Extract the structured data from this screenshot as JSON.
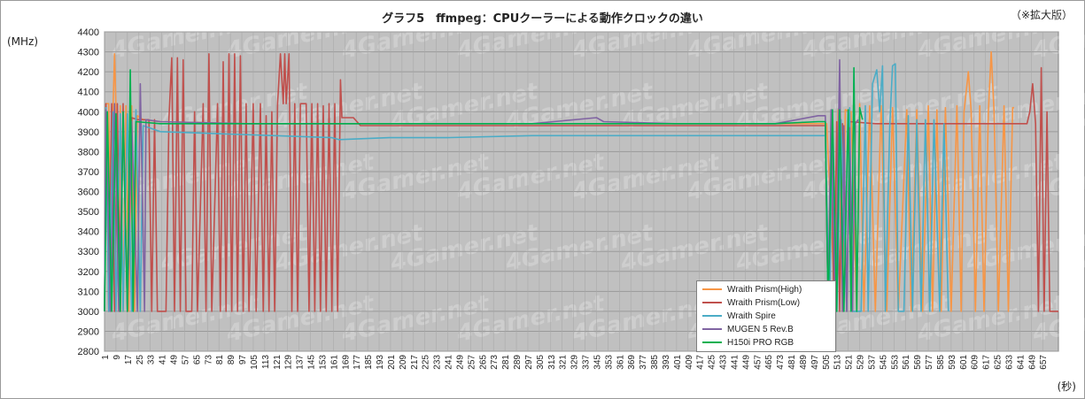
{
  "header": {
    "title": "グラフ5　ffmpeg：CPUクーラーによる動作クロックの違い",
    "note": "（※拡大版）"
  },
  "watermark_text": "4Gamer.net",
  "chart_data": {
    "type": "line",
    "title": "グラフ5　ffmpeg：CPUクーラーによる動作クロックの違い",
    "ylabel": "(MHz)",
    "xlabel": "(秒)",
    "ylim": [
      2800,
      4400
    ],
    "yticks": [
      2800,
      2900,
      3000,
      3100,
      3200,
      3300,
      3400,
      3500,
      3600,
      3700,
      3800,
      3900,
      4000,
      4100,
      4200,
      4300,
      4400
    ],
    "xlim": [
      1,
      668
    ],
    "xticks": [
      1,
      9,
      17,
      25,
      33,
      41,
      49,
      57,
      65,
      73,
      81,
      89,
      97,
      105,
      113,
      121,
      129,
      137,
      145,
      153,
      161,
      169,
      177,
      185,
      193,
      201,
      209,
      217,
      225,
      233,
      241,
      249,
      257,
      265,
      273,
      281,
      289,
      297,
      305,
      313,
      321,
      329,
      337,
      345,
      353,
      361,
      369,
      377,
      385,
      393,
      401,
      409,
      417,
      425,
      433,
      441,
      449,
      457,
      465,
      473,
      481,
      489,
      497,
      505,
      513,
      521,
      529,
      537,
      545,
      553,
      561,
      569,
      577,
      585,
      593,
      601,
      609,
      617,
      625,
      633,
      641,
      649,
      657
    ],
    "grid": true,
    "legend_position": "lower-right",
    "plot_background": "#c0c0c0",
    "series": [
      {
        "name": "Wraith Prism(High)",
        "color": "#f79646",
        "points": [
          [
            1,
            3000
          ],
          [
            2,
            4040
          ],
          [
            4,
            4040
          ],
          [
            6,
            3000
          ],
          [
            7,
            4030
          ],
          [
            8,
            4290
          ],
          [
            9,
            4030
          ],
          [
            11,
            3000
          ],
          [
            12,
            4030
          ],
          [
            14,
            3000
          ],
          [
            16,
            4030
          ],
          [
            18,
            3000
          ],
          [
            20,
            4030
          ],
          [
            22,
            3000
          ],
          [
            24,
            3980
          ],
          [
            28,
            3960
          ],
          [
            40,
            3950
          ],
          [
            100,
            3940
          ],
          [
            160,
            3940
          ],
          [
            506,
            3940
          ],
          [
            512,
            3000
          ],
          [
            514,
            4010
          ],
          [
            517,
            3000
          ],
          [
            519,
            4010
          ],
          [
            523,
            4000
          ],
          [
            527,
            3000
          ],
          [
            529,
            4040
          ],
          [
            532,
            3000
          ],
          [
            536,
            4030
          ],
          [
            540,
            3000
          ],
          [
            544,
            4030
          ],
          [
            548,
            3000
          ],
          [
            552,
            4020
          ],
          [
            556,
            3000
          ],
          [
            562,
            4010
          ],
          [
            565,
            3000
          ],
          [
            569,
            4010
          ],
          [
            573,
            3000
          ],
          [
            577,
            4030
          ],
          [
            580,
            3000
          ],
          [
            583,
            4010
          ],
          [
            586,
            3000
          ],
          [
            589,
            4020
          ],
          [
            593,
            3000
          ],
          [
            597,
            4030
          ],
          [
            600,
            3000
          ],
          [
            602,
            4000
          ],
          [
            605,
            4200
          ],
          [
            607,
            4000
          ],
          [
            610,
            3000
          ],
          [
            613,
            4030
          ],
          [
            616,
            3000
          ],
          [
            619,
            4000
          ],
          [
            621,
            4300
          ],
          [
            623,
            4000
          ],
          [
            626,
            3000
          ],
          [
            630,
            4030
          ],
          [
            633,
            3000
          ],
          [
            636,
            4020
          ],
          [
            637,
            4020
          ]
        ]
      },
      {
        "name": "Wraith Prism(Low)",
        "color": "#c0504d",
        "points": [
          [
            1,
            3000
          ],
          [
            2,
            4040
          ],
          [
            4,
            3000
          ],
          [
            6,
            4040
          ],
          [
            8,
            3000
          ],
          [
            10,
            4040
          ],
          [
            12,
            3000
          ],
          [
            14,
            4040
          ],
          [
            17,
            3000
          ],
          [
            20,
            3970
          ],
          [
            24,
            3960
          ],
          [
            32,
            3960
          ],
          [
            34,
            3000
          ],
          [
            36,
            3960
          ],
          [
            38,
            3000
          ],
          [
            44,
            3000
          ],
          [
            46,
            3960
          ],
          [
            48,
            4270
          ],
          [
            50,
            3000
          ],
          [
            52,
            4270
          ],
          [
            54,
            3000
          ],
          [
            56,
            4260
          ],
          [
            58,
            3000
          ],
          [
            62,
            3000
          ],
          [
            64,
            4000
          ],
          [
            66,
            3000
          ],
          [
            70,
            4040
          ],
          [
            72,
            3000
          ],
          [
            74,
            4290
          ],
          [
            76,
            3000
          ],
          [
            80,
            4040
          ],
          [
            82,
            3000
          ],
          [
            84,
            4250
          ],
          [
            86,
            3000
          ],
          [
            88,
            4290
          ],
          [
            90,
            3000
          ],
          [
            92,
            4290
          ],
          [
            94,
            3000
          ],
          [
            96,
            4280
          ],
          [
            98,
            3000
          ],
          [
            100,
            4040
          ],
          [
            102,
            3000
          ],
          [
            105,
            4040
          ],
          [
            107,
            3000
          ],
          [
            110,
            4040
          ],
          [
            112,
            3000
          ],
          [
            114,
            3980
          ],
          [
            116,
            3000
          ],
          [
            118,
            4000
          ],
          [
            120,
            3000
          ],
          [
            122,
            4040
          ],
          [
            124,
            4290
          ],
          [
            126,
            4040
          ],
          [
            127,
            4290
          ],
          [
            128,
            4040
          ],
          [
            130,
            4290
          ],
          [
            132,
            3000
          ],
          [
            134,
            4040
          ],
          [
            136,
            3000
          ],
          [
            138,
            4040
          ],
          [
            142,
            4040
          ],
          [
            144,
            3000
          ],
          [
            146,
            4040
          ],
          [
            148,
            3000
          ],
          [
            150,
            4040
          ],
          [
            152,
            3000
          ],
          [
            154,
            4030
          ],
          [
            156,
            3000
          ],
          [
            158,
            4040
          ],
          [
            160,
            3000
          ],
          [
            162,
            4040
          ],
          [
            164,
            3000
          ],
          [
            166,
            4160
          ],
          [
            167,
            3970
          ],
          [
            175,
            3970
          ],
          [
            180,
            3930
          ],
          [
            300,
            3930
          ],
          [
            400,
            3930
          ],
          [
            505,
            3930
          ],
          [
            507,
            3000
          ],
          [
            509,
            3960
          ],
          [
            511,
            3000
          ],
          [
            513,
            3950
          ],
          [
            515,
            3000
          ],
          [
            517,
            3940
          ],
          [
            520,
            3000
          ],
          [
            522,
            3950
          ],
          [
            540,
            3940
          ],
          [
            600,
            3940
          ],
          [
            640,
            3940
          ],
          [
            646,
            3940
          ],
          [
            648,
            4000
          ],
          [
            650,
            4140
          ],
          [
            652,
            3940
          ],
          [
            654,
            3000
          ],
          [
            656,
            4220
          ],
          [
            658,
            3000
          ],
          [
            660,
            4000
          ],
          [
            662,
            3000
          ],
          [
            668,
            3000
          ]
        ]
      },
      {
        "name": "Wraith Spire",
        "color": "#4bacc6",
        "points": [
          [
            1,
            3000
          ],
          [
            2,
            4020
          ],
          [
            4,
            3000
          ],
          [
            7,
            4000
          ],
          [
            9,
            3000
          ],
          [
            12,
            3990
          ],
          [
            14,
            3000
          ],
          [
            17,
            3990
          ],
          [
            20,
            3000
          ],
          [
            23,
            4010
          ],
          [
            26,
            3000
          ],
          [
            28,
            3930
          ],
          [
            40,
            3900
          ],
          [
            80,
            3890
          ],
          [
            120,
            3880
          ],
          [
            160,
            3870
          ],
          [
            165,
            3860
          ],
          [
            200,
            3870
          ],
          [
            240,
            3870
          ],
          [
            300,
            3880
          ],
          [
            360,
            3880
          ],
          [
            420,
            3880
          ],
          [
            470,
            3880
          ],
          [
            505,
            3880
          ],
          [
            508,
            3000
          ],
          [
            510,
            3960
          ],
          [
            513,
            3000
          ],
          [
            516,
            3960
          ],
          [
            520,
            3000
          ],
          [
            522,
            4020
          ],
          [
            524,
            3000
          ],
          [
            530,
            3000
          ],
          [
            533,
            4030
          ],
          [
            535,
            3000
          ],
          [
            538,
            4140
          ],
          [
            541,
            4210
          ],
          [
            543,
            4000
          ],
          [
            545,
            4230
          ],
          [
            547,
            3000
          ],
          [
            550,
            3920
          ],
          [
            552,
            4230
          ],
          [
            554,
            4240
          ],
          [
            556,
            3000
          ],
          [
            560,
            3000
          ],
          [
            563,
            3980
          ],
          [
            566,
            3000
          ],
          [
            569,
            3960
          ],
          [
            572,
            3000
          ],
          [
            575,
            3960
          ],
          [
            578,
            3000
          ],
          [
            581,
            3960
          ],
          [
            585,
            3000
          ],
          [
            588,
            3940
          ],
          [
            591,
            3000
          ]
        ]
      },
      {
        "name": "MUGEN 5 Rev.B",
        "color": "#8064a2",
        "points": [
          [
            1,
            3000
          ],
          [
            2,
            4010
          ],
          [
            5,
            3000
          ],
          [
            8,
            4040
          ],
          [
            11,
            3000
          ],
          [
            14,
            3960
          ],
          [
            17,
            3000
          ],
          [
            20,
            3950
          ],
          [
            24,
            3000
          ],
          [
            26,
            4140
          ],
          [
            29,
            3000
          ],
          [
            30,
            3960
          ],
          [
            40,
            3950
          ],
          [
            100,
            3940
          ],
          [
            160,
            3940
          ],
          [
            220,
            3940
          ],
          [
            300,
            3940
          ],
          [
            345,
            3970
          ],
          [
            350,
            3950
          ],
          [
            400,
            3940
          ],
          [
            470,
            3940
          ],
          [
            500,
            3980
          ],
          [
            505,
            3980
          ],
          [
            507,
            3000
          ],
          [
            509,
            4010
          ],
          [
            512,
            3000
          ],
          [
            515,
            4260
          ],
          [
            517,
            3000
          ],
          [
            518,
            3930
          ],
          [
            520,
            3000
          ],
          [
            522,
            3920
          ],
          [
            524,
            3000
          ],
          [
            526,
            3940
          ],
          [
            528,
            3960
          ]
        ]
      },
      {
        "name": "H150i PRO RGB",
        "color": "#00b050",
        "points": [
          [
            1,
            3000
          ],
          [
            3,
            4000
          ],
          [
            6,
            3000
          ],
          [
            9,
            3990
          ],
          [
            12,
            3000
          ],
          [
            14,
            4000
          ],
          [
            17,
            3000
          ],
          [
            19,
            4210
          ],
          [
            21,
            3000
          ],
          [
            23,
            3950
          ],
          [
            40,
            3940
          ],
          [
            100,
            3940
          ],
          [
            160,
            3940
          ],
          [
            200,
            3940
          ],
          [
            300,
            3940
          ],
          [
            360,
            3940
          ],
          [
            400,
            3940
          ],
          [
            470,
            3940
          ],
          [
            500,
            3950
          ],
          [
            505,
            3950
          ],
          [
            507,
            3000
          ],
          [
            510,
            4010
          ],
          [
            513,
            3000
          ],
          [
            515,
            4010
          ],
          [
            518,
            3000
          ],
          [
            521,
            4010
          ],
          [
            523,
            3000
          ],
          [
            525,
            4220
          ],
          [
            527,
            3000
          ],
          [
            529,
            4020
          ],
          [
            531,
            3960
          ]
        ]
      }
    ]
  }
}
